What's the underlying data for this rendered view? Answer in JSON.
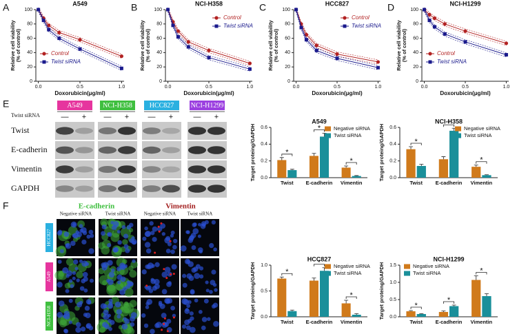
{
  "figure": {
    "panel_labels": [
      "A",
      "B",
      "C",
      "D",
      "E",
      "F"
    ],
    "blot": {
      "treatment_label": "Twist siRNA",
      "cell_lines": [
        "A549",
        "NCI-H358",
        "HCC827",
        "NCI-H1299"
      ],
      "lanes": [
        "—",
        "+"
      ],
      "proteins": [
        "Twist",
        "E-cadherin",
        "Vimentin",
        "GAPDH"
      ]
    },
    "immunofluorescence": {
      "stains": [
        "E-cadherin",
        "Vimentin"
      ],
      "columns": [
        "Negative siRNA",
        "Twist siRNA",
        "Negative siRNA",
        "Twist siRNA"
      ],
      "cell_lines": [
        "HCC827",
        "A549",
        "NCI-H358"
      ]
    }
  },
  "chart_data": [
    {
      "type": "line",
      "title": "A549",
      "xlabel": "Doxorubicin(μg/ml)",
      "ylabel": [
        "Relative cell viability",
        "(% of control)"
      ],
      "x": [
        0,
        0.0625,
        0.125,
        0.25,
        0.5,
        1.0
      ],
      "xlim": [
        -0.03,
        1.03
      ],
      "ylim": [
        0,
        100
      ],
      "xticks": [
        {
          "value": 0,
          "label": "0.0"
        },
        {
          "value": 0.5,
          "label": "0.5"
        },
        {
          "value": 1.0,
          "label": "1.0"
        }
      ],
      "yticks": [
        0,
        20,
        40,
        60,
        80,
        100
      ],
      "legend": "lower left",
      "series": [
        {
          "name": "Control",
          "color": "#b22222",
          "marker": "circle",
          "values": [
            100,
            88,
            78,
            68,
            58,
            35
          ]
        },
        {
          "name": "Twist siRNA",
          "color": "#1a1a8c",
          "marker": "square",
          "values": [
            100,
            85,
            72,
            60,
            45,
            18
          ]
        }
      ]
    },
    {
      "type": "line",
      "title": "NCI-H358",
      "xlabel": "Doxorubicin(μg/ml)",
      "ylabel": [
        "Relative cell viability",
        "(% of control)"
      ],
      "x": [
        0,
        0.0625,
        0.125,
        0.25,
        0.5,
        1.0
      ],
      "xlim": [
        -0.03,
        1.03
      ],
      "ylim": [
        0,
        100
      ],
      "xticks": [
        {
          "value": 0,
          "label": "0.0"
        },
        {
          "value": 0.5,
          "label": "0.5"
        },
        {
          "value": 1.0,
          "label": "1.0"
        }
      ],
      "yticks": [
        0,
        20,
        40,
        60,
        80,
        100
      ],
      "legend": "upper right",
      "series": [
        {
          "name": "Control",
          "color": "#b22222",
          "marker": "circle",
          "values": [
            100,
            83,
            70,
            55,
            43,
            25
          ]
        },
        {
          "name": "Twist siRNA",
          "color": "#1a1a8c",
          "marker": "square",
          "values": [
            100,
            78,
            62,
            48,
            33,
            17
          ]
        }
      ]
    },
    {
      "type": "line",
      "title": "HCC827",
      "xlabel": "Doxorubicin(μg/ml)",
      "ylabel": [
        "Relative cell viability",
        "(% of control)"
      ],
      "x": [
        0,
        0.0625,
        0.125,
        0.25,
        0.5,
        1.0
      ],
      "xlim": [
        -0.03,
        1.03
      ],
      "ylim": [
        0,
        100
      ],
      "xticks": [
        {
          "value": 0,
          "label": "0.0"
        },
        {
          "value": 0.5,
          "label": "0.5"
        },
        {
          "value": 1.0,
          "label": "1.0"
        }
      ],
      "yticks": [
        0,
        20,
        40,
        60,
        80,
        100
      ],
      "legend": "upper right",
      "series": [
        {
          "name": "Control",
          "color": "#b22222",
          "marker": "circle",
          "values": [
            100,
            80,
            65,
            50,
            38,
            27
          ]
        },
        {
          "name": "Twist siRNA",
          "color": "#1a1a8c",
          "marker": "square",
          "values": [
            100,
            75,
            58,
            43,
            32,
            19
          ]
        }
      ]
    },
    {
      "type": "line",
      "title": "NCI-H1299",
      "xlabel": "Doxorubicin(μg/ml)",
      "ylabel": [
        "Relative cell viability",
        "(% of control)"
      ],
      "x": [
        0,
        0.0625,
        0.125,
        0.25,
        0.5,
        1.0
      ],
      "xlim": [
        -0.03,
        1.03
      ],
      "ylim": [
        0,
        100
      ],
      "xticks": [
        {
          "value": 0,
          "label": "0.0"
        },
        {
          "value": 0.5,
          "label": "0.5"
        },
        {
          "value": 1.0,
          "label": "1.0"
        }
      ],
      "yticks": [
        0,
        20,
        40,
        60,
        80,
        100
      ],
      "legend": "lower left",
      "series": [
        {
          "name": "Control",
          "color": "#b22222",
          "marker": "circle",
          "values": [
            100,
            93,
            88,
            80,
            70,
            53
          ]
        },
        {
          "name": "Twist siRNA",
          "color": "#1a1a8c",
          "marker": "square",
          "values": [
            100,
            85,
            76,
            66,
            55,
            37
          ]
        }
      ]
    },
    {
      "type": "bar",
      "title": "A549",
      "ylabel": "Target proteing/GAPDH",
      "categories": [
        "Twist",
        "E-cadherin",
        "Vimentin"
      ],
      "ylim": [
        0,
        0.6
      ],
      "yticks": [
        {
          "value": 0,
          "label": "0.0"
        },
        0.2,
        0.4,
        0.6
      ],
      "legend": "upper right",
      "annotations": [
        "*",
        "*",
        "*"
      ],
      "series": [
        {
          "name": "Negative siRNA",
          "color": "#d07a1b",
          "values": [
            0.21,
            0.26,
            0.12
          ],
          "errors": [
            0.03,
            0.03,
            0.02
          ]
        },
        {
          "name": "Twist siRNA",
          "color": "#1a8f9a",
          "values": [
            0.09,
            0.49,
            0.02
          ],
          "errors": [
            0.01,
            0.04,
            0.005
          ]
        }
      ]
    },
    {
      "type": "bar",
      "title": "NCI-H358",
      "ylabel": "Target proteing/GAPDH",
      "categories": [
        "Twist",
        "E-cadherin",
        "Vimentin"
      ],
      "ylim": [
        0,
        0.6
      ],
      "yticks": [
        {
          "value": 0,
          "label": "0.0"
        },
        0.2,
        0.4,
        0.6
      ],
      "legend": "upper right",
      "annotations": [
        "*",
        "*",
        "*"
      ],
      "series": [
        {
          "name": "Negative siRNA",
          "color": "#d07a1b",
          "values": [
            0.34,
            0.22,
            0.13
          ],
          "errors": [
            0.03,
            0.03,
            0.02
          ]
        },
        {
          "name": "Twist siRNA",
          "color": "#1a8f9a",
          "values": [
            0.14,
            0.56,
            0.03
          ],
          "errors": [
            0.02,
            0.03,
            0.005
          ]
        }
      ]
    },
    {
      "type": "bar",
      "title": "HCC827",
      "ylabel": "Target proteing/GAPDH",
      "categories": [
        "Twist",
        "E-cadherin",
        "Vimentin"
      ],
      "ylim": [
        0,
        1.0
      ],
      "yticks": [
        {
          "value": 0,
          "label": "0.0"
        },
        0.5,
        {
          "value": 1.0,
          "label": "1.0"
        }
      ],
      "legend": "upper right",
      "annotations": [
        "*",
        "*",
        "*"
      ],
      "series": [
        {
          "name": "Negative siRNA",
          "color": "#d07a1b",
          "values": [
            0.74,
            0.7,
            0.26
          ],
          "errors": [
            0.03,
            0.05,
            0.06
          ]
        },
        {
          "name": "Twist siRNA",
          "color": "#1a8f9a",
          "values": [
            0.11,
            0.89,
            0.04
          ],
          "errors": [
            0.02,
            0.06,
            0.02
          ]
        }
      ]
    },
    {
      "type": "bar",
      "title": "NCI-H1299",
      "ylabel": "Target proteing/GAPDH",
      "categories": [
        "Twist",
        "E-cadherin",
        "Vimentin"
      ],
      "ylim": [
        0,
        1.5
      ],
      "yticks": [
        {
          "value": 0,
          "label": "0.0"
        },
        0.5,
        {
          "value": 1.0,
          "label": "1.0"
        },
        1.5
      ],
      "legend": "upper left",
      "annotations": [
        "*",
        "*",
        "*"
      ],
      "series": [
        {
          "name": "Negative siRNA",
          "color": "#d07a1b",
          "values": [
            0.16,
            0.14,
            1.07
          ],
          "errors": [
            0.02,
            0.03,
            0.12
          ]
        },
        {
          "name": "Twist siRNA",
          "color": "#1a8f9a",
          "values": [
            0.08,
            0.31,
            0.6
          ],
          "errors": [
            0.01,
            0.03,
            0.07
          ]
        }
      ]
    }
  ]
}
